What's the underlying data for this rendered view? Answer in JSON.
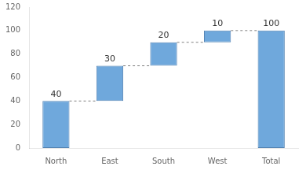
{
  "chart_data": {
    "type": "waterfall",
    "categories": [
      "North",
      "East",
      "South",
      "West",
      "Total"
    ],
    "values": [
      40,
      30,
      20,
      10,
      100
    ],
    "bottoms": [
      0,
      40,
      70,
      90,
      0
    ],
    "color": "#6FA8DC",
    "ylim": [
      0,
      120
    ],
    "yticks": [
      0,
      20,
      40,
      60,
      80,
      100,
      120
    ],
    "grid": false,
    "data_labels": true
  }
}
